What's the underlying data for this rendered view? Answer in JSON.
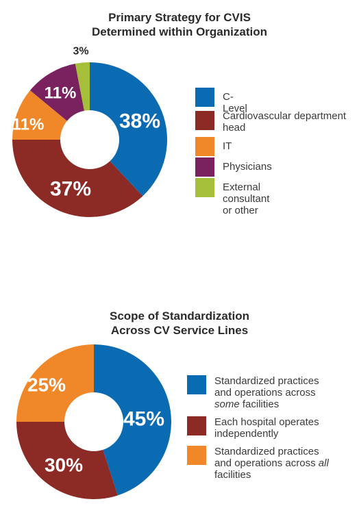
{
  "chart_data": [
    {
      "type": "pie",
      "title": "Primary Strategy for CVIS Determined within Organization",
      "title_lines": [
        "Primary Strategy for CVIS",
        "Determined within Organization"
      ],
      "labels": [
        "C-Level",
        "Cardiovascular department head",
        "IT",
        "Physicians",
        "External consultant or other"
      ],
      "values": [
        38,
        37,
        11,
        11,
        3
      ],
      "value_labels": [
        "38%",
        "37%",
        "11%",
        "11%",
        "3%"
      ],
      "colors": [
        "#0a6bb2",
        "#8c2a25",
        "#f0882a",
        "#7a2160",
        "#a5bf3a"
      ],
      "donut": true,
      "legend_position": "right"
    },
    {
      "type": "pie",
      "title": "Scope of Standardization Across CV Service Lines",
      "title_lines": [
        "Scope of Standardization",
        "Across CV Service Lines"
      ],
      "labels": [
        "Standardized practices and operations across some facilities",
        "Each hospital operates independently",
        "Standardized practices and operations across all facilities"
      ],
      "values": [
        45,
        30,
        25
      ],
      "value_labels": [
        "45%",
        "30%",
        "25%"
      ],
      "colors": [
        "#0a6bb2",
        "#8c2a25",
        "#f0882a"
      ],
      "donut": true,
      "legend_position": "right"
    }
  ]
}
